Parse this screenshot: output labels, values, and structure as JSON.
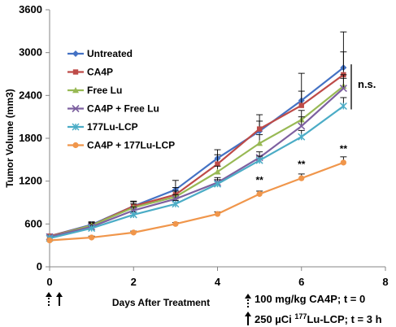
{
  "chart_data": {
    "type": "line",
    "xlabel": "Days After Treatment",
    "ylabel": "Tumor Volume (mm3)",
    "xlim": [
      0,
      8
    ],
    "ylim": [
      0,
      3600
    ],
    "x_ticks": [
      "0",
      "2",
      "4",
      "6",
      "8"
    ],
    "y_ticks": [
      "0",
      "600",
      "1200",
      "1800",
      "2400",
      "3000",
      "3600"
    ],
    "legend_position": "top-left",
    "x": [
      0,
      1,
      2,
      3,
      4,
      5,
      6,
      7
    ],
    "series": [
      {
        "name": "Untreated",
        "color": "#4472c4",
        "marker": "diamond",
        "values": [
          430,
          590,
          850,
          1080,
          1520,
          1900,
          2330,
          2790
        ],
        "errors": [
          0,
          40,
          70,
          130,
          120,
          140,
          380,
          500
        ]
      },
      {
        "name": "CA4P",
        "color": "#be4b48",
        "marker": "square",
        "values": [
          430,
          580,
          850,
          1010,
          1440,
          1930,
          2260,
          2690
        ],
        "errors": [
          0,
          40,
          60,
          100,
          130,
          200,
          200,
          320
        ]
      },
      {
        "name": "Free Lu",
        "color": "#98b954",
        "marker": "triangle",
        "values": [
          420,
          580,
          830,
          980,
          1330,
          1730,
          2060,
          2530
        ],
        "errors": [
          0,
          30,
          50,
          80,
          80,
          120,
          130,
          160
        ]
      },
      {
        "name": "CA4P + Free Lu",
        "color": "#7d60a0",
        "marker": "x",
        "values": [
          420,
          560,
          790,
          950,
          1180,
          1530,
          1970,
          2500
        ],
        "errors": [
          0,
          30,
          50,
          60,
          70,
          80,
          130,
          140
        ]
      },
      {
        "name": "177Lu-LCP",
        "color": "#4bacc6",
        "marker": "asterisk",
        "values": [
          400,
          540,
          730,
          880,
          1160,
          1490,
          1820,
          2250
        ],
        "errors": [
          0,
          30,
          40,
          50,
          60,
          60,
          90,
          120
        ]
      },
      {
        "name": "CA4P + 177Lu-LCP",
        "color": "#f0964b",
        "marker": "circle",
        "values": [
          370,
          410,
          480,
          600,
          740,
          1020,
          1240,
          1460
        ],
        "errors": [
          0,
          20,
          20,
          20,
          30,
          40,
          60,
          80
        ]
      }
    ],
    "annotations": {
      "significance": "n.s.",
      "stars": [
        {
          "x": 5,
          "y": 1020,
          "text": "**"
        },
        {
          "x": 6,
          "y": 1240,
          "text": "**"
        },
        {
          "x": 7,
          "y": 1460,
          "text": "**"
        }
      ],
      "dose_line_1": "100 mg/kg CA4P; t = 0",
      "dose_line_2_prefix": "250 µCi ",
      "dose_line_2_sup": "177",
      "dose_line_2_suffix": "Lu-LCP; t = 3 h"
    }
  }
}
